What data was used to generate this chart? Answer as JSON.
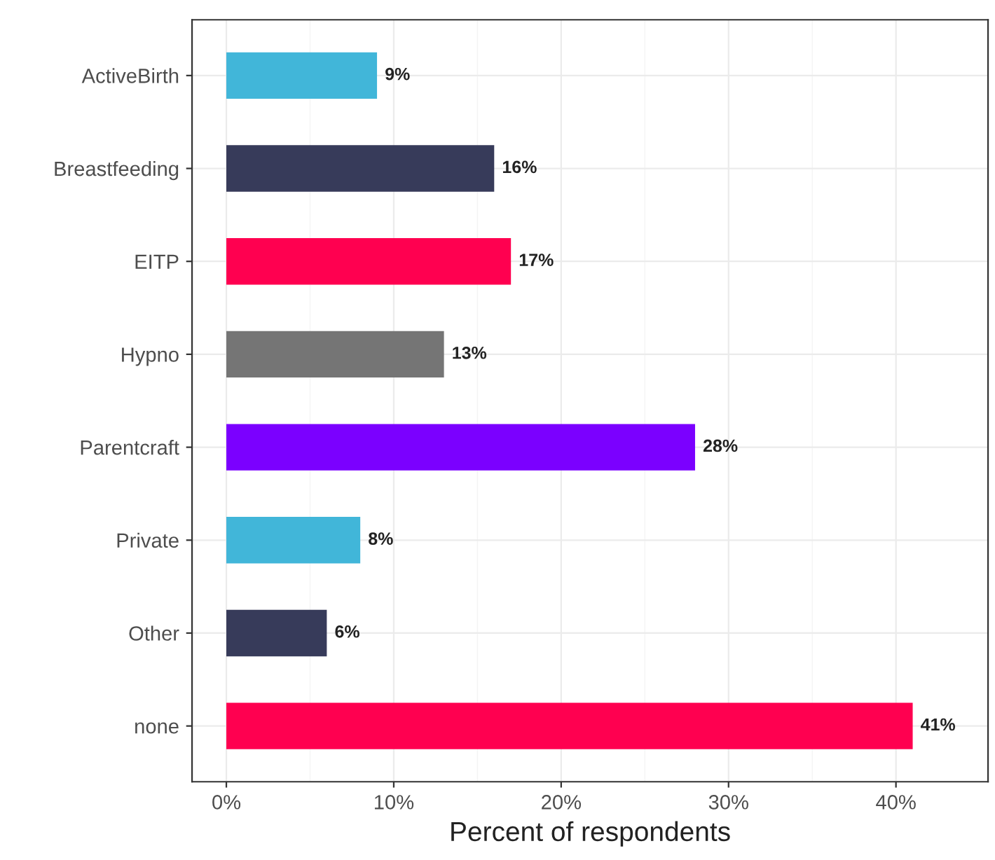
{
  "chart_data": {
    "type": "bar",
    "orientation": "horizontal",
    "xlabel": "Percent of respondents",
    "categories": [
      "ActiveBirth",
      "Breastfeeding",
      "EITP",
      "Hypno",
      "Parentcraft",
      "Private",
      "Other",
      "none"
    ],
    "values": [
      9,
      16,
      17,
      13,
      28,
      8,
      6,
      41
    ],
    "colors": [
      "#41b6d9",
      "#373b5a",
      "#ff0050",
      "#757575",
      "#7b00ff",
      "#41b6d9",
      "#373b5a",
      "#ff0050"
    ],
    "value_labels": [
      "9%",
      "16%",
      "17%",
      "13%",
      "28%",
      "8%",
      "6%",
      "41%"
    ],
    "xlim": [
      -2.05,
      45.5
    ],
    "xticks": [
      {
        "value": 0,
        "label": "0%"
      },
      {
        "value": 10,
        "label": "10%"
      },
      {
        "value": 20,
        "label": "20%"
      },
      {
        "value": 30,
        "label": "30%"
      },
      {
        "value": 40,
        "label": "40%"
      }
    ],
    "grid": true,
    "legend": false
  }
}
